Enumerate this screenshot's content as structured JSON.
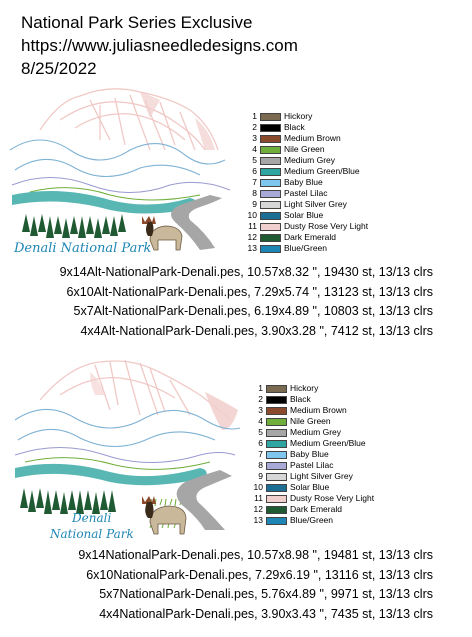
{
  "header": {
    "title": "National Park Series Exclusive",
    "url": "https://www.juliasneedledesigns.com",
    "date": "8/25/2022"
  },
  "designs": [
    {
      "art_label": "Denali National Park",
      "colors": [
        {
          "num": "1",
          "name": "Hickory",
          "hex": "#7a6a52"
        },
        {
          "num": "2",
          "name": "Black",
          "hex": "#000000"
        },
        {
          "num": "3",
          "name": "Medium Brown",
          "hex": "#8b4a2b"
        },
        {
          "num": "4",
          "name": "Nile Green",
          "hex": "#6fae3a"
        },
        {
          "num": "5",
          "name": "Medium Grey",
          "hex": "#a6a6a6"
        },
        {
          "num": "6",
          "name": "Medium Green/Blue",
          "hex": "#2ea5a0"
        },
        {
          "num": "7",
          "name": "Baby Blue",
          "hex": "#7fc6ee"
        },
        {
          "num": "8",
          "name": "Pastel Lilac",
          "hex": "#a9a9d8"
        },
        {
          "num": "9",
          "name": "Light Silver Grey",
          "hex": "#d7d7d7"
        },
        {
          "num": "10",
          "name": "Solar Blue",
          "hex": "#1c6f94"
        },
        {
          "num": "11",
          "name": "Dusty Rose Very Light",
          "hex": "#f1cfcd"
        },
        {
          "num": "12",
          "name": "Dark Emerald",
          "hex": "#1f5a32"
        },
        {
          "num": "13",
          "name": "Blue/Green",
          "hex": "#1e86b5"
        }
      ],
      "files": [
        "9x14Alt-NationalPark-Denali.pes, 10.57x8.32 \", 19430 st, 13/13 clrs",
        "6x10Alt-NationalPark-Denali.pes, 7.29x5.74 \", 13123 st, 13/13 clrs",
        "5x7Alt-NationalPark-Denali.pes, 6.19x4.89 \", 10803 st, 13/13 clrs",
        "4x4Alt-NationalPark-Denali.pes, 3.90x3.28 \", 7412 st, 13/13 clrs"
      ]
    },
    {
      "art_label_line1": "Denali",
      "art_label_line2": "National Park",
      "colors": [
        {
          "num": "1",
          "name": "Hickory",
          "hex": "#7a6a52"
        },
        {
          "num": "2",
          "name": "Black",
          "hex": "#000000"
        },
        {
          "num": "3",
          "name": "Medium Brown",
          "hex": "#8b4a2b"
        },
        {
          "num": "4",
          "name": "Nile Green",
          "hex": "#6fae3a"
        },
        {
          "num": "5",
          "name": "Medium Grey",
          "hex": "#a6a6a6"
        },
        {
          "num": "6",
          "name": "Medium Green/Blue",
          "hex": "#2ea5a0"
        },
        {
          "num": "7",
          "name": "Baby Blue",
          "hex": "#7fc6ee"
        },
        {
          "num": "8",
          "name": "Pastel Lilac",
          "hex": "#a9a9d8"
        },
        {
          "num": "9",
          "name": "Light Silver Grey",
          "hex": "#d7d7d7"
        },
        {
          "num": "10",
          "name": "Solar Blue",
          "hex": "#1c6f94"
        },
        {
          "num": "11",
          "name": "Dusty Rose Very Light",
          "hex": "#f1cfcd"
        },
        {
          "num": "12",
          "name": "Dark Emerald",
          "hex": "#1f5a32"
        },
        {
          "num": "13",
          "name": "Blue/Green",
          "hex": "#1e86b5"
        }
      ],
      "files": [
        "9x14NationalPark-Denali.pes, 10.57x8.98 \", 19481 st, 13/13 clrs",
        "6x10NationalPark-Denali.pes, 7.29x6.19 \", 13116 st, 13/13 clrs",
        "5x7NationalPark-Denali.pes, 5.76x4.89 \", 9971 st, 13/13 clrs",
        "4x4NationalPark-Denali.pes, 3.90x3.43 \", 7435 st, 13/13 clrs"
      ]
    }
  ]
}
